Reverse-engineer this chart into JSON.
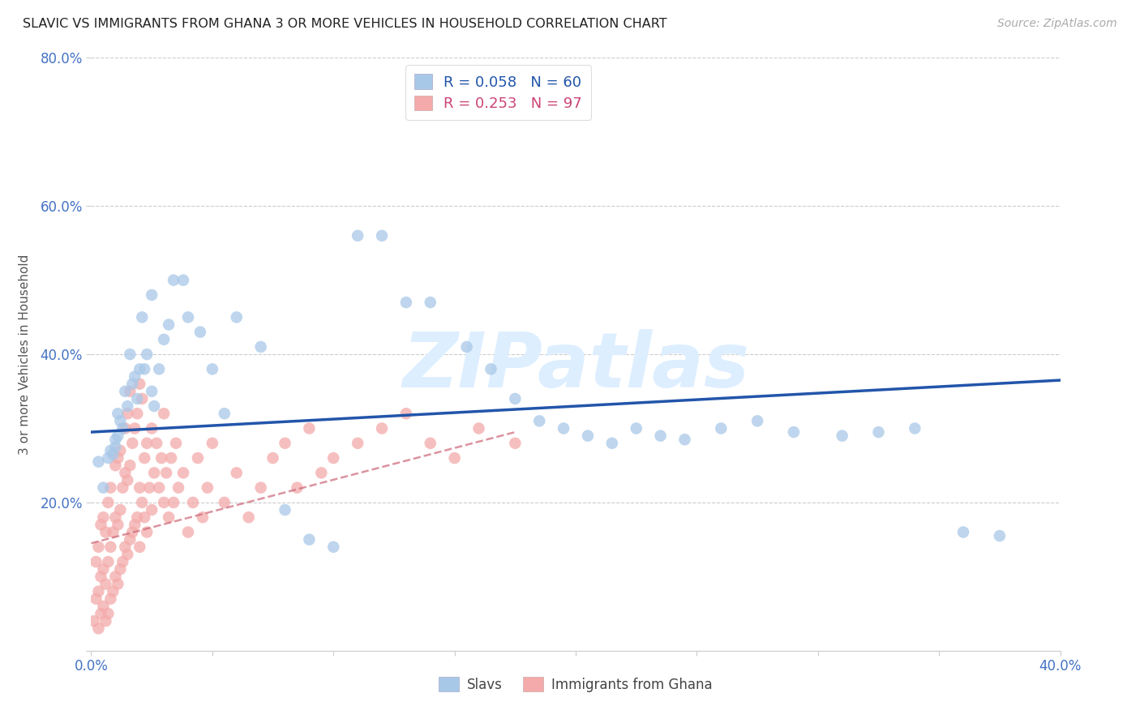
{
  "title": "SLAVIC VS IMMIGRANTS FROM GHANA 3 OR MORE VEHICLES IN HOUSEHOLD CORRELATION CHART",
  "source": "Source: ZipAtlas.com",
  "ylabel": "3 or more Vehicles in Household",
  "watermark": "ZIPatlas",
  "xlim": [
    0.0,
    0.4
  ],
  "ylim": [
    0.0,
    0.8
  ],
  "slavs_color": "#a8c8e8",
  "ghana_color": "#f4aaaa",
  "line_slavs_color": "#2255aa",
  "line_ghana_color": "#cc6677",
  "grid_color": "#cccccc",
  "title_color": "#222222",
  "axis_label_color": "#555555",
  "tick_color": "#4472c4",
  "watermark_color": "#ddeeff",
  "slavs_x": [
    0.003,
    0.005,
    0.007,
    0.008,
    0.009,
    0.01,
    0.01,
    0.011,
    0.011,
    0.012,
    0.013,
    0.014,
    0.015,
    0.016,
    0.017,
    0.018,
    0.019,
    0.02,
    0.021,
    0.022,
    0.023,
    0.025,
    0.025,
    0.026,
    0.028,
    0.03,
    0.032,
    0.034,
    0.038,
    0.04,
    0.045,
    0.05,
    0.055,
    0.06,
    0.07,
    0.08,
    0.09,
    0.1,
    0.11,
    0.12,
    0.13,
    0.14,
    0.155,
    0.165,
    0.175,
    0.185,
    0.195,
    0.205,
    0.215,
    0.225,
    0.235,
    0.245,
    0.26,
    0.275,
    0.29,
    0.31,
    0.325,
    0.34,
    0.36,
    0.375
  ],
  "slavs_y": [
    0.255,
    0.22,
    0.26,
    0.27,
    0.265,
    0.275,
    0.285,
    0.29,
    0.32,
    0.31,
    0.3,
    0.35,
    0.33,
    0.4,
    0.36,
    0.37,
    0.34,
    0.38,
    0.45,
    0.38,
    0.4,
    0.48,
    0.35,
    0.33,
    0.38,
    0.42,
    0.44,
    0.5,
    0.5,
    0.45,
    0.43,
    0.38,
    0.32,
    0.45,
    0.41,
    0.19,
    0.15,
    0.14,
    0.56,
    0.56,
    0.47,
    0.47,
    0.41,
    0.38,
    0.34,
    0.31,
    0.3,
    0.29,
    0.28,
    0.3,
    0.29,
    0.285,
    0.3,
    0.31,
    0.295,
    0.29,
    0.295,
    0.3,
    0.16,
    0.155
  ],
  "ghana_x": [
    0.001,
    0.002,
    0.002,
    0.003,
    0.003,
    0.003,
    0.004,
    0.004,
    0.004,
    0.005,
    0.005,
    0.005,
    0.006,
    0.006,
    0.006,
    0.007,
    0.007,
    0.007,
    0.008,
    0.008,
    0.008,
    0.009,
    0.009,
    0.01,
    0.01,
    0.01,
    0.011,
    0.011,
    0.011,
    0.012,
    0.012,
    0.012,
    0.013,
    0.013,
    0.014,
    0.014,
    0.014,
    0.015,
    0.015,
    0.015,
    0.016,
    0.016,
    0.016,
    0.017,
    0.017,
    0.018,
    0.018,
    0.019,
    0.019,
    0.02,
    0.02,
    0.02,
    0.021,
    0.021,
    0.022,
    0.022,
    0.023,
    0.023,
    0.024,
    0.025,
    0.025,
    0.026,
    0.027,
    0.028,
    0.029,
    0.03,
    0.03,
    0.031,
    0.032,
    0.033,
    0.034,
    0.035,
    0.036,
    0.038,
    0.04,
    0.042,
    0.044,
    0.046,
    0.048,
    0.05,
    0.055,
    0.06,
    0.065,
    0.07,
    0.075,
    0.08,
    0.085,
    0.09,
    0.095,
    0.1,
    0.11,
    0.12,
    0.13,
    0.14,
    0.15,
    0.16,
    0.175
  ],
  "ghana_y": [
    0.04,
    0.07,
    0.12,
    0.03,
    0.08,
    0.14,
    0.05,
    0.1,
    0.17,
    0.06,
    0.11,
    0.18,
    0.04,
    0.09,
    0.16,
    0.05,
    0.12,
    0.2,
    0.07,
    0.14,
    0.22,
    0.08,
    0.16,
    0.1,
    0.18,
    0.25,
    0.09,
    0.17,
    0.26,
    0.11,
    0.19,
    0.27,
    0.12,
    0.22,
    0.14,
    0.24,
    0.3,
    0.13,
    0.23,
    0.32,
    0.15,
    0.25,
    0.35,
    0.16,
    0.28,
    0.17,
    0.3,
    0.18,
    0.32,
    0.14,
    0.22,
    0.36,
    0.2,
    0.34,
    0.18,
    0.26,
    0.16,
    0.28,
    0.22,
    0.19,
    0.3,
    0.24,
    0.28,
    0.22,
    0.26,
    0.2,
    0.32,
    0.24,
    0.18,
    0.26,
    0.2,
    0.28,
    0.22,
    0.24,
    0.16,
    0.2,
    0.26,
    0.18,
    0.22,
    0.28,
    0.2,
    0.24,
    0.18,
    0.22,
    0.26,
    0.28,
    0.22,
    0.3,
    0.24,
    0.26,
    0.28,
    0.3,
    0.32,
    0.28,
    0.26,
    0.3,
    0.28
  ],
  "slavs_regline_x": [
    0.0,
    0.4
  ],
  "slavs_regline_y": [
    0.295,
    0.365
  ],
  "ghana_regline_x": [
    0.0,
    0.175
  ],
  "ghana_regline_y": [
    0.145,
    0.295
  ]
}
